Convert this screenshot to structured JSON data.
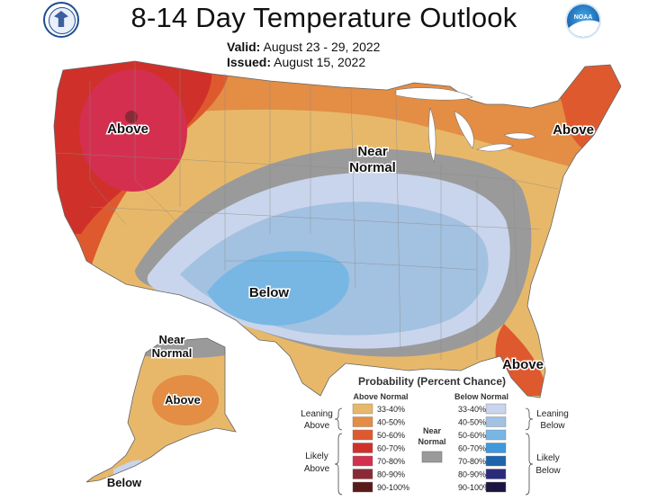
{
  "title": "8-14 Day Temperature Outlook",
  "valid_label": "Valid:",
  "valid_dates": "August 23 - 29, 2022",
  "issued_label": "Issued:",
  "issued_date": "August 15, 2022",
  "logos": {
    "left": "commerce-seal",
    "right": "noaa-logo",
    "right_text": "NOAA"
  },
  "map_labels": {
    "west_above": "Above",
    "northeast_above": "Above",
    "central_near_normal_line1": "Near",
    "central_near_normal_line2": "Normal",
    "south_below": "Below",
    "florida_above": "Above",
    "alaska_near_line1": "Near",
    "alaska_near_line2": "Normal",
    "alaska_above": "Above",
    "alaska_below": "Below"
  },
  "legend": {
    "title": "Probability (Percent Chance)",
    "above_header": "Above Normal",
    "below_header": "Below Normal",
    "near_label_line1": "Near",
    "near_label_line2": "Normal",
    "leaning_above_line1": "Leaning",
    "leaning_above_line2": "Above",
    "likely_above_line1": "Likely",
    "likely_above_line2": "Above",
    "leaning_below_line1": "Leaning",
    "leaning_below_line2": "Below",
    "likely_below_line1": "Likely",
    "likely_below_line2": "Below",
    "above_items": [
      {
        "range": "33-40%",
        "color": "#e8b86a"
      },
      {
        "range": "40-50%",
        "color": "#e38d45"
      },
      {
        "range": "50-60%",
        "color": "#de5a2e"
      },
      {
        "range": "60-70%",
        "color": "#d0302a"
      },
      {
        "range": "70-80%",
        "color": "#d42f4f"
      },
      {
        "range": "80-90%",
        "color": "#8a2a36"
      },
      {
        "range": "90-100%",
        "color": "#5a1a1a"
      }
    ],
    "below_items": [
      {
        "range": "33-40%",
        "color": "#c9d5ec"
      },
      {
        "range": "40-50%",
        "color": "#a3c1e1"
      },
      {
        "range": "50-60%",
        "color": "#78b7e4"
      },
      {
        "range": "60-70%",
        "color": "#3f98d9"
      },
      {
        "range": "70-80%",
        "color": "#1e64ad"
      },
      {
        "range": "80-90%",
        "color": "#2c2a7a"
      },
      {
        "range": "90-100%",
        "color": "#1b1442"
      }
    ],
    "near_color": "#9a9a9a"
  }
}
